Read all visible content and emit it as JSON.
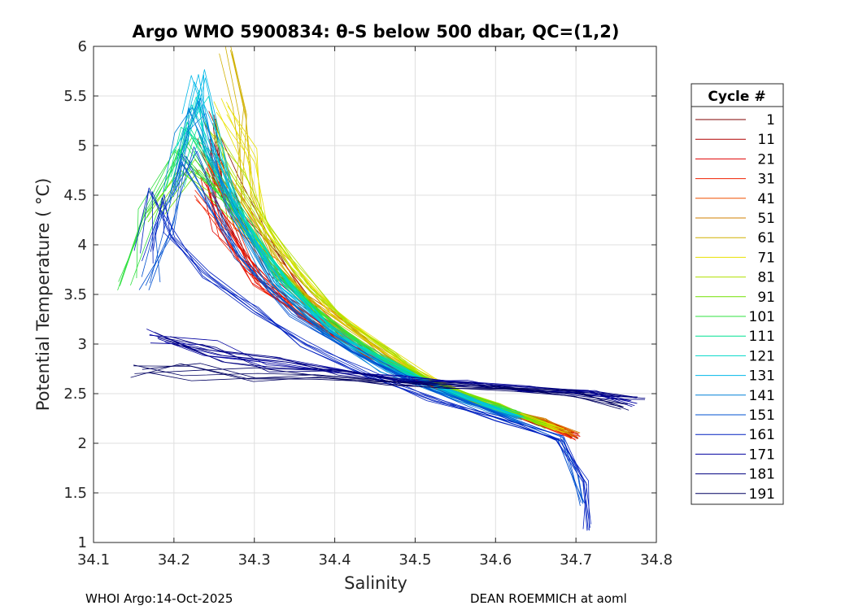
{
  "chart_data": {
    "type": "line",
    "title": "Argo WMO 5900834: θ-S below 500 dbar,  QC=(1,2)",
    "xlabel": "Salinity",
    "ylabel": "Potential Temperature ( °C)",
    "xlim": [
      34.1,
      34.8
    ],
    "ylim": [
      1,
      6
    ],
    "grid": true,
    "x_ticks": [
      "34.1",
      "34.2",
      "34.3",
      "34.4",
      "34.5",
      "34.6",
      "34.7",
      "34.8"
    ],
    "y_ticks": [
      "1",
      "1.5",
      "2",
      "2.5",
      "3",
      "3.5",
      "4",
      "4.5",
      "5",
      "5.5",
      "6"
    ],
    "legend": {
      "title": "Cycle #",
      "placement": "outside-right",
      "entries": [
        {
          "label": "1",
          "color": "#800000"
        },
        {
          "label": "11",
          "color": "#b00000"
        },
        {
          "label": "21",
          "color": "#e00000"
        },
        {
          "label": "31",
          "color": "#f02000"
        },
        {
          "label": "41",
          "color": "#f05000"
        },
        {
          "label": "51",
          "color": "#d08000"
        },
        {
          "label": "61",
          "color": "#d0b000"
        },
        {
          "label": "71",
          "color": "#e8e000"
        },
        {
          "label": "81",
          "color": "#b0e000"
        },
        {
          "label": "91",
          "color": "#70e000"
        },
        {
          "label": "101",
          "color": "#30e040"
        },
        {
          "label": "111",
          "color": "#00e090"
        },
        {
          "label": "121",
          "color": "#00d8c8"
        },
        {
          "label": "131",
          "color": "#00b8e8"
        },
        {
          "label": "141",
          "color": "#0080d8"
        },
        {
          "label": "151",
          "color": "#0050d0"
        },
        {
          "label": "161",
          "color": "#0020c0"
        },
        {
          "label": "171",
          "color": "#0000a0"
        },
        {
          "label": "181",
          "color": "#000080"
        },
        {
          "label": "191",
          "color": "#000060"
        }
      ]
    },
    "series": [
      {
        "name": "1",
        "color": "#800000",
        "x": [
          34.25,
          34.27,
          34.32,
          34.38,
          34.45,
          34.52,
          34.6,
          34.66,
          34.7
        ],
        "y": [
          5.3,
          4.6,
          3.8,
          3.3,
          2.9,
          2.6,
          2.35,
          2.2,
          2.08
        ]
      },
      {
        "name": "11",
        "color": "#b00000",
        "x": [
          34.24,
          34.26,
          34.31,
          34.37,
          34.44,
          34.52,
          34.6,
          34.66,
          34.7
        ],
        "y": [
          5.0,
          4.4,
          3.75,
          3.3,
          2.9,
          2.6,
          2.35,
          2.2,
          2.07
        ]
      },
      {
        "name": "21",
        "color": "#e00000",
        "x": [
          34.23,
          34.26,
          34.3,
          34.36,
          34.44,
          34.52,
          34.6,
          34.66,
          34.7
        ],
        "y": [
          4.7,
          4.2,
          3.7,
          3.3,
          2.9,
          2.6,
          2.35,
          2.2,
          2.06
        ]
      },
      {
        "name": "31",
        "color": "#f02000",
        "x": [
          34.24,
          34.27,
          34.31,
          34.37,
          34.45,
          34.52,
          34.6,
          34.66,
          34.7
        ],
        "y": [
          4.5,
          4.1,
          3.6,
          3.25,
          2.88,
          2.6,
          2.35,
          2.2,
          2.06
        ]
      },
      {
        "name": "41",
        "color": "#f05000",
        "x": [
          34.25,
          34.28,
          34.33,
          34.38,
          34.45,
          34.52,
          34.6,
          34.66,
          34.7
        ],
        "y": [
          4.8,
          4.2,
          3.7,
          3.3,
          2.9,
          2.6,
          2.36,
          2.21,
          2.08
        ]
      },
      {
        "name": "51",
        "color": "#d08000",
        "x": [
          34.25,
          34.29,
          34.34,
          34.4,
          34.46,
          34.52,
          34.6,
          34.66,
          34.7
        ],
        "y": [
          4.9,
          4.3,
          3.75,
          3.3,
          2.92,
          2.6,
          2.36,
          2.22,
          2.09
        ]
      },
      {
        "name": "61",
        "color": "#d0b000",
        "x": [
          34.27,
          34.28,
          34.29,
          34.33,
          34.38,
          34.45,
          34.52,
          34.6,
          34.69
        ],
        "y": [
          5.98,
          5.3,
          4.5,
          3.8,
          3.35,
          2.95,
          2.62,
          2.38,
          2.12
        ]
      },
      {
        "name": "71",
        "color": "#e8e000",
        "x": [
          34.26,
          34.29,
          34.31,
          34.35,
          34.4,
          34.46,
          34.52,
          34.6,
          34.68
        ],
        "y": [
          5.4,
          4.9,
          4.3,
          3.75,
          3.3,
          2.95,
          2.64,
          2.38,
          2.14
        ]
      },
      {
        "name": "81",
        "color": "#b0e000",
        "x": [
          34.24,
          34.28,
          34.32,
          34.37,
          34.42,
          34.47,
          34.52,
          34.6,
          34.67
        ],
        "y": [
          5.2,
          4.7,
          4.1,
          3.6,
          3.2,
          2.9,
          2.63,
          2.38,
          2.15
        ]
      },
      {
        "name": "91",
        "color": "#70e000",
        "x": [
          34.18,
          34.22,
          34.27,
          34.32,
          34.38,
          34.45,
          34.52,
          34.6,
          34.66
        ],
        "y": [
          4.3,
          4.8,
          4.4,
          3.8,
          3.3,
          2.9,
          2.62,
          2.37,
          2.18
        ]
      },
      {
        "name": "101",
        "color": "#30e040",
        "x": [
          34.14,
          34.17,
          34.21,
          34.27,
          34.33,
          34.4,
          34.47,
          34.55,
          34.63
        ],
        "y": [
          3.6,
          4.3,
          5.0,
          4.4,
          3.7,
          3.2,
          2.8,
          2.5,
          2.3
        ]
      },
      {
        "name": "111",
        "color": "#00e090",
        "x": [
          34.2,
          34.22,
          34.25,
          34.29,
          34.34,
          34.4,
          34.47,
          34.55,
          34.63
        ],
        "y": [
          4.6,
          5.2,
          4.8,
          4.2,
          3.6,
          3.15,
          2.8,
          2.5,
          2.28
        ]
      },
      {
        "name": "121",
        "color": "#00d8c8",
        "x": [
          34.21,
          34.23,
          34.25,
          34.29,
          34.34,
          34.4,
          34.47,
          34.55,
          34.63
        ],
        "y": [
          5.0,
          5.5,
          4.9,
          4.2,
          3.6,
          3.1,
          2.78,
          2.5,
          2.26
        ]
      },
      {
        "name": "131",
        "color": "#00b8e8",
        "x": [
          34.22,
          34.235,
          34.25,
          34.28,
          34.33,
          34.4,
          34.47,
          34.55,
          34.63
        ],
        "y": [
          5.3,
          5.7,
          5.0,
          4.3,
          3.6,
          3.1,
          2.76,
          2.48,
          2.25
        ]
      },
      {
        "name": "141",
        "color": "#0080d8",
        "x": [
          34.19,
          34.21,
          34.23,
          34.27,
          34.32,
          34.39,
          34.46,
          34.55,
          34.63
        ],
        "y": [
          4.5,
          5.1,
          5.4,
          4.4,
          3.6,
          3.1,
          2.75,
          2.45,
          2.22
        ]
      },
      {
        "name": "151",
        "color": "#0050d0",
        "x": [
          34.17,
          34.19,
          34.22,
          34.28,
          34.35,
          34.42,
          34.5,
          34.6,
          34.68,
          34.7,
          34.71
        ],
        "y": [
          3.6,
          4.2,
          4.9,
          3.9,
          3.3,
          2.95,
          2.6,
          2.3,
          2.05,
          1.7,
          1.4
        ]
      },
      {
        "name": "161",
        "color": "#0020c0",
        "x": [
          34.16,
          34.18,
          34.2,
          34.24,
          34.3,
          34.36,
          34.44,
          34.52,
          34.6,
          34.68,
          34.71,
          34.715
        ],
        "y": [
          3.9,
          4.5,
          4.1,
          3.7,
          3.35,
          3.0,
          2.7,
          2.45,
          2.25,
          2.05,
          1.6,
          1.15
        ]
      },
      {
        "name": "171",
        "color": "#0000a0",
        "x": [
          34.18,
          34.25,
          34.32,
          34.4,
          34.48,
          34.56,
          34.64,
          34.72,
          34.77
        ],
        "y": [
          3.1,
          2.95,
          2.82,
          2.72,
          2.65,
          2.6,
          2.55,
          2.5,
          2.4
        ]
      },
      {
        "name": "181",
        "color": "#000080",
        "x": [
          34.19,
          34.26,
          34.33,
          34.41,
          34.49,
          34.57,
          34.65,
          34.73,
          34.78
        ],
        "y": [
          3.05,
          2.9,
          2.78,
          2.7,
          2.62,
          2.58,
          2.54,
          2.48,
          2.46
        ]
      },
      {
        "name": "191",
        "color": "#000060",
        "x": [
          34.16,
          34.22,
          34.3,
          34.38,
          34.46,
          34.54,
          34.62,
          34.7,
          34.76
        ],
        "y": [
          2.74,
          2.72,
          2.7,
          2.66,
          2.62,
          2.58,
          2.54,
          2.5,
          2.36
        ]
      }
    ]
  },
  "footer": {
    "left": "WHOI Argo:14-Oct-2025",
    "right": "DEAN ROEMMICH at aoml"
  }
}
